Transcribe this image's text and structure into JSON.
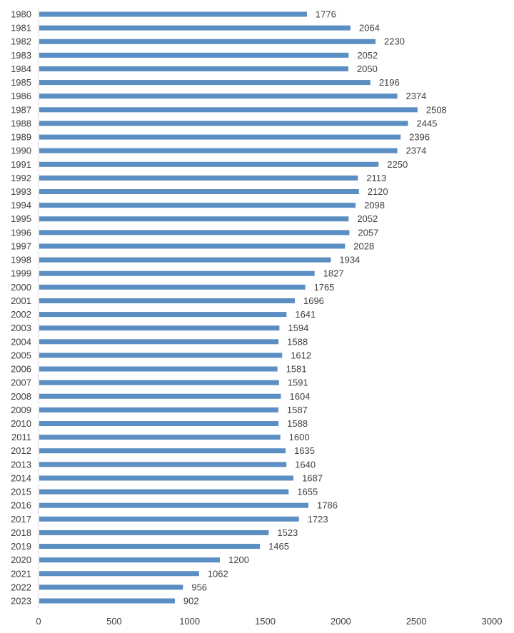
{
  "chart_data": {
    "type": "bar",
    "orientation": "horizontal",
    "categories": [
      "1980",
      "1981",
      "1982",
      "1983",
      "1984",
      "1985",
      "1986",
      "1987",
      "1988",
      "1989",
      "1990",
      "1991",
      "1992",
      "1993",
      "1994",
      "1995",
      "1996",
      "1997",
      "1998",
      "1999",
      "2000",
      "2001",
      "2002",
      "2003",
      "2004",
      "2005",
      "2006",
      "2007",
      "2008",
      "2009",
      "2010",
      "2011",
      "2012",
      "2013",
      "2014",
      "2015",
      "2016",
      "2017",
      "2018",
      "2019",
      "2020",
      "2021",
      "2022",
      "2023"
    ],
    "values": [
      1776,
      2064,
      2230,
      2052,
      2050,
      2196,
      2374,
      2508,
      2445,
      2396,
      2374,
      2250,
      2113,
      2120,
      2098,
      2052,
      2057,
      2028,
      1934,
      1827,
      1765,
      1696,
      1641,
      1594,
      1588,
      1612,
      1581,
      1591,
      1604,
      1587,
      1588,
      1600,
      1635,
      1640,
      1687,
      1655,
      1786,
      1723,
      1523,
      1465,
      1200,
      1062,
      956,
      902
    ],
    "title": "",
    "xlabel": "",
    "ylabel": "",
    "xlim": [
      0,
      3000
    ],
    "xticks": [
      "0",
      "500",
      "1000",
      "1500",
      "2000",
      "2500",
      "3000"
    ],
    "grid": false,
    "data_labels": true,
    "bar_color": "#5b8ec2",
    "text_color": "#404040"
  }
}
